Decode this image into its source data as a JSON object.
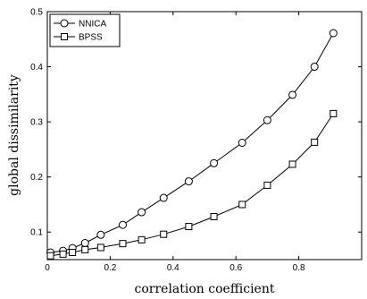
{
  "chart_data": {
    "type": "line",
    "xlabel": "correlation coefficient",
    "ylabel": "global dissimilarity",
    "xlim": [
      0,
      1
    ],
    "ylim": [
      0.05,
      0.5
    ],
    "xticks": [
      0,
      0.2,
      0.4,
      0.6,
      0.8
    ],
    "yticks": [
      0.1,
      0.2,
      0.3,
      0.4,
      0.5
    ],
    "xtick_labels": [
      "0",
      "0.2",
      "0.4",
      "0.6",
      "0.8"
    ],
    "ytick_labels": [
      "0.1",
      "0.2",
      "0.3",
      "0.4",
      "0.5"
    ],
    "grid": false,
    "legend_position": "top-left",
    "series": [
      {
        "name": "NNICA",
        "marker": "circle",
        "color": "#000000",
        "x": [
          0.01,
          0.05,
          0.08,
          0.12,
          0.17,
          0.24,
          0.3,
          0.37,
          0.45,
          0.53,
          0.62,
          0.7,
          0.78,
          0.85,
          0.91
        ],
        "y": [
          0.063,
          0.066,
          0.071,
          0.08,
          0.095,
          0.113,
          0.136,
          0.162,
          0.192,
          0.225,
          0.262,
          0.303,
          0.349,
          0.4,
          0.461
        ]
      },
      {
        "name": "BPSS",
        "marker": "square",
        "color": "#000000",
        "x": [
          0.01,
          0.05,
          0.08,
          0.12,
          0.17,
          0.24,
          0.3,
          0.37,
          0.45,
          0.53,
          0.62,
          0.7,
          0.78,
          0.85,
          0.91
        ],
        "y": [
          0.057,
          0.06,
          0.063,
          0.068,
          0.072,
          0.079,
          0.086,
          0.096,
          0.11,
          0.128,
          0.15,
          0.185,
          0.223,
          0.263,
          0.315
        ]
      }
    ]
  }
}
